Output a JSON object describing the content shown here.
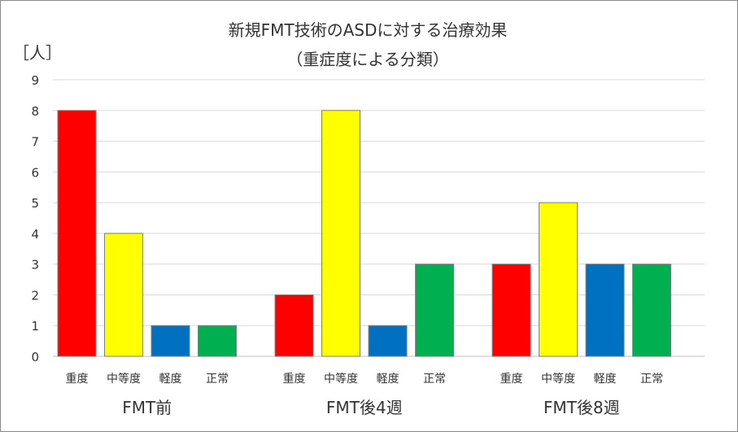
{
  "chart_data": {
    "type": "bar",
    "title": "新規FMT技術のASDに対する治療効果",
    "subtitle": "（重症度による分類）",
    "ylabel": "［人］",
    "xlabel": "",
    "ylim": [
      0,
      9
    ],
    "yticks": [
      "0",
      "1",
      "2",
      "3",
      "4",
      "5",
      "6",
      "7",
      "8",
      "9"
    ],
    "grid": true,
    "legend": "none",
    "groups": [
      {
        "label": "FMT前",
        "bars": [
          {
            "category": "重度",
            "value": 8,
            "color": "#ff0000"
          },
          {
            "category": "中等度",
            "value": 4,
            "color": "#ffff00"
          },
          {
            "category": "軽度",
            "value": 1,
            "color": "#0070c0"
          },
          {
            "category": "正常",
            "value": 1,
            "color": "#00b050"
          }
        ]
      },
      {
        "label": "FMT後4週",
        "bars": [
          {
            "category": "重度",
            "value": 2,
            "color": "#ff0000"
          },
          {
            "category": "中等度",
            "value": 8,
            "color": "#ffff00"
          },
          {
            "category": "軽度",
            "value": 1,
            "color": "#0070c0"
          },
          {
            "category": "正常",
            "value": 3,
            "color": "#00b050"
          }
        ]
      },
      {
        "label": "FMT後8週",
        "bars": [
          {
            "category": "重度",
            "value": 3,
            "color": "#ff0000"
          },
          {
            "category": "中等度",
            "value": 5,
            "color": "#ffff00"
          },
          {
            "category": "軽度",
            "value": 3,
            "color": "#0070c0"
          },
          {
            "category": "正常",
            "value": 3,
            "color": "#00b050"
          }
        ]
      }
    ]
  }
}
